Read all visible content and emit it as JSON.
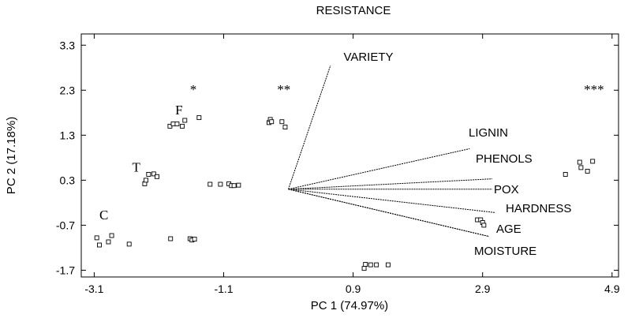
{
  "chart_data": {
    "type": "scatter",
    "title": "RESISTANCE",
    "xlabel": "PC 1 (74.97%)",
    "ylabel": "PC 2 (17.18%)",
    "xlim": [
      -3.3,
      5.0
    ],
    "ylim": [
      -1.85,
      3.55
    ],
    "xticks": [
      -3.1,
      -1.1,
      0.9,
      2.9,
      4.9
    ],
    "yticks": [
      -1.7,
      -0.7,
      0.3,
      1.3,
      2.3,
      3.3
    ],
    "xtick_labels": [
      "-3.1",
      "-1.1",
      "0.9",
      "2.9",
      "4.9"
    ],
    "ytick_labels": [
      "-1.7",
      "-0.7",
      "0.3",
      "1.3",
      "2.3",
      "3.3"
    ],
    "grid": false,
    "points": [
      {
        "x": -3.06,
        "y": -0.98
      },
      {
        "x": -3.02,
        "y": -1.14
      },
      {
        "x": -2.88,
        "y": -1.07
      },
      {
        "x": -2.83,
        "y": -0.93
      },
      {
        "x": -2.56,
        "y": -1.12
      },
      {
        "x": -2.32,
        "y": 0.22
      },
      {
        "x": -2.3,
        "y": 0.3
      },
      {
        "x": -2.26,
        "y": 0.43
      },
      {
        "x": -2.18,
        "y": 0.44
      },
      {
        "x": -2.13,
        "y": 0.38
      },
      {
        "x": -1.93,
        "y": 1.5
      },
      {
        "x": -1.88,
        "y": 1.55
      },
      {
        "x": -1.82,
        "y": 1.55
      },
      {
        "x": -1.74,
        "y": 1.5
      },
      {
        "x": -1.7,
        "y": 1.63
      },
      {
        "x": -1.48,
        "y": 1.69
      },
      {
        "x": -1.92,
        "y": -1.0
      },
      {
        "x": -1.62,
        "y": -1.0
      },
      {
        "x": -1.59,
        "y": -1.03
      },
      {
        "x": -1.55,
        "y": -1.01
      },
      {
        "x": -1.31,
        "y": 0.21
      },
      {
        "x": -1.15,
        "y": 0.21
      },
      {
        "x": -1.02,
        "y": 0.22
      },
      {
        "x": -0.98,
        "y": 0.18
      },
      {
        "x": -0.94,
        "y": 0.18
      },
      {
        "x": -0.87,
        "y": 0.19
      },
      {
        "x": -0.4,
        "y": 1.58
      },
      {
        "x": -0.38,
        "y": 1.65
      },
      {
        "x": -0.36,
        "y": 1.6
      },
      {
        "x": -0.2,
        "y": 1.6
      },
      {
        "x": -0.15,
        "y": 1.48
      },
      {
        "x": 1.07,
        "y": -1.66
      },
      {
        "x": 1.09,
        "y": -1.57
      },
      {
        "x": 1.17,
        "y": -1.58
      },
      {
        "x": 1.26,
        "y": -1.58
      },
      {
        "x": 1.44,
        "y": -1.58
      },
      {
        "x": 2.82,
        "y": -0.58
      },
      {
        "x": 2.87,
        "y": -0.58
      },
      {
        "x": 2.9,
        "y": -0.64
      },
      {
        "x": 2.92,
        "y": -0.7
      },
      {
        "x": 4.18,
        "y": 0.43
      },
      {
        "x": 4.4,
        "y": 0.7
      },
      {
        "x": 4.42,
        "y": 0.58
      },
      {
        "x": 4.52,
        "y": 0.5
      },
      {
        "x": 4.6,
        "y": 0.72
      }
    ],
    "vectors": [
      {
        "label": "VARIETY",
        "x": 0.55,
        "y": 2.85
      },
      {
        "label": "LIGNIN",
        "x": 2.7,
        "y": 1.0
      },
      {
        "label": "PHENOLS",
        "x": 3.05,
        "y": 0.33
      },
      {
        "label": "POX",
        "x": 3.05,
        "y": 0.1
      },
      {
        "label": "HARDNESS",
        "x": 3.1,
        "y": -0.42
      },
      {
        "label": "AGE",
        "x": 3.0,
        "y": -0.95
      },
      {
        "label": "MOISTURE",
        "x": 3.0,
        "y": -0.95
      }
    ],
    "vector_origin": {
      "x": -0.1,
      "y": 0.1
    },
    "annotations": [
      {
        "text": "*",
        "x": -1.57,
        "y": 2.32
      },
      {
        "text": "**",
        "x": -0.17,
        "y": 2.32
      },
      {
        "text": "***",
        "x": 4.62,
        "y": 2.32
      },
      {
        "text": "F",
        "x": -1.79,
        "y": 1.85
      },
      {
        "text": "T",
        "x": -2.45,
        "y": 0.58
      },
      {
        "text": "C",
        "x": -2.95,
        "y": -0.48
      }
    ]
  }
}
